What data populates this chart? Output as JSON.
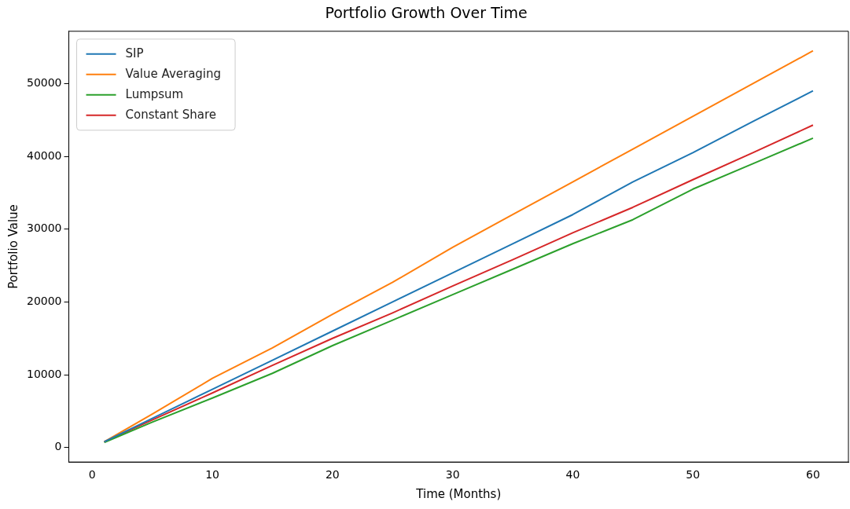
{
  "chart_data": {
    "type": "line",
    "title": "Portfolio Growth Over Time",
    "xlabel": "Time (Months)",
    "ylabel": "Portfolio Value",
    "x": [
      1,
      5,
      10,
      15,
      20,
      25,
      30,
      35,
      40,
      45,
      50,
      55,
      60
    ],
    "series": [
      {
        "name": "SIP",
        "color": "#1f77b4",
        "values": [
          800,
          4000,
          8000,
          12000,
          16000,
          20000,
          24000,
          28000,
          32000,
          36500,
          40500,
          44800,
          49000
        ]
      },
      {
        "name": "Value Averaging",
        "color": "#ff7f0e",
        "values": [
          800,
          4600,
          9500,
          13700,
          18300,
          22700,
          27500,
          32000,
          36500,
          41000,
          45500,
          50000,
          54500
        ]
      },
      {
        "name": "Lumpsum",
        "color": "#2ca02c",
        "values": [
          700,
          3500,
          6800,
          10200,
          14000,
          17500,
          21000,
          24500,
          28000,
          31300,
          35500,
          39000,
          42500
        ]
      },
      {
        "name": "Constant Share",
        "color": "#d62728",
        "values": [
          800,
          3800,
          7500,
          11300,
          15000,
          18500,
          22200,
          25800,
          29500,
          33000,
          36800,
          40500,
          44300
        ]
      }
    ],
    "xlim": [
      -1.95,
      62.95
    ],
    "xticks": [
      0,
      10,
      20,
      30,
      40,
      50,
      60
    ],
    "ylim": [
      -1990,
      57190
    ],
    "yticks": [
      0,
      10000,
      20000,
      30000,
      40000,
      50000
    ],
    "legend": "top left",
    "grid": false,
    "marker": "none",
    "line_style": "solid"
  }
}
